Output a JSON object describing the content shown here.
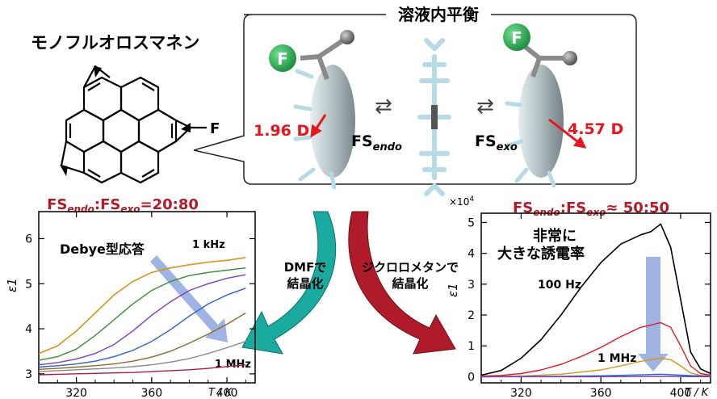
{
  "title_left": "モノフルオロスマネン",
  "molecule_substituent": "F",
  "equilibrium_title": "溶液内平衡",
  "equilibrium": {
    "endo": {
      "atom": "F",
      "dipole": "1.96 D",
      "label_main": "FS",
      "label_sub": "endo"
    },
    "exo": {
      "atom": "F",
      "dipole": "4.57 D",
      "label_main": "FS",
      "label_sub": "exo"
    },
    "arrow_symbol": "⇄"
  },
  "arrows": {
    "left": {
      "line1": "DMFで",
      "line2": "結晶化"
    },
    "right": {
      "line1": "ジクロロメタンで",
      "line2": "結晶化"
    }
  },
  "colors": {
    "red": "#e8161c",
    "dark_red": "#b01b2a",
    "teal": "#1aaa9f",
    "blue_arrow": "#8ea7dd",
    "green_ball": "#1fa64a"
  },
  "chart_data": [
    {
      "type": "line",
      "title_main1": "FS",
      "title_sub1": "endo",
      "title_sep": ":",
      "title_main2": "FS",
      "title_sub2": "exo",
      "title_ratio": "=20:80",
      "xlabel": "T / K",
      "ylabel": "ε1",
      "xlim": [
        300,
        415
      ],
      "ylim": [
        2.8,
        6.6
      ],
      "xticks": [
        "320",
        "360",
        "400"
      ],
      "yticks": [
        "3",
        "4",
        "5",
        "6"
      ],
      "annotations": {
        "label": "Debye型応答",
        "high": "1 kHz",
        "low": "1 MHz"
      },
      "series": [
        {
          "color": "#d4961a",
          "x": [
            300,
            310,
            320,
            330,
            340,
            350,
            360,
            370,
            380,
            390,
            400,
            410
          ],
          "y": [
            3.45,
            3.62,
            3.95,
            4.35,
            4.75,
            5.05,
            5.25,
            5.35,
            5.42,
            5.48,
            5.52,
            5.58
          ]
        },
        {
          "color": "#3a8a3a",
          "x": [
            300,
            310,
            320,
            330,
            340,
            350,
            360,
            370,
            380,
            390,
            400,
            410
          ],
          "y": [
            3.3,
            3.38,
            3.55,
            3.85,
            4.2,
            4.55,
            4.85,
            5.05,
            5.18,
            5.25,
            5.3,
            5.35
          ]
        },
        {
          "color": "#7a3fc4",
          "x": [
            300,
            310,
            320,
            330,
            340,
            350,
            360,
            370,
            380,
            390,
            400,
            410
          ],
          "y": [
            3.2,
            3.25,
            3.33,
            3.45,
            3.65,
            3.95,
            4.3,
            4.6,
            4.85,
            5.0,
            5.12,
            5.2
          ]
        },
        {
          "color": "#2f5fd0",
          "x": [
            300,
            310,
            320,
            330,
            340,
            350,
            360,
            370,
            380,
            390,
            400,
            410
          ],
          "y": [
            3.15,
            3.18,
            3.22,
            3.28,
            3.38,
            3.52,
            3.72,
            3.98,
            4.28,
            4.55,
            4.75,
            4.9
          ]
        },
        {
          "color": "#8a6a2a",
          "x": [
            300,
            310,
            320,
            330,
            340,
            350,
            360,
            370,
            380,
            390,
            400,
            410
          ],
          "y": [
            3.1,
            3.12,
            3.15,
            3.18,
            3.22,
            3.28,
            3.37,
            3.5,
            3.68,
            3.88,
            4.1,
            4.35
          ]
        },
        {
          "color": "#888888",
          "x": [
            300,
            310,
            320,
            330,
            340,
            350,
            360,
            370,
            380,
            390,
            400,
            410
          ],
          "y": [
            3.05,
            3.07,
            3.09,
            3.11,
            3.13,
            3.16,
            3.2,
            3.26,
            3.34,
            3.45,
            3.58,
            3.72
          ]
        },
        {
          "color": "#b01a4a",
          "x": [
            300,
            310,
            320,
            330,
            340,
            350,
            360,
            370,
            380,
            390,
            400,
            410
          ],
          "y": [
            2.98,
            2.99,
            3.0,
            3.01,
            3.02,
            3.03,
            3.05,
            3.07,
            3.09,
            3.12,
            3.16,
            3.2
          ]
        }
      ]
    },
    {
      "type": "line",
      "title_main1": "FS",
      "title_sub1": "endo",
      "title_sep": ":",
      "title_main2": "FS",
      "title_sub2": "exo",
      "title_ratio": "≈ 50:50",
      "xlabel": "T / K",
      "ylabel": "ε1",
      "yscale_label": "×10",
      "yscale_exp": "4",
      "xlim": [
        300,
        415
      ],
      "ylim": [
        -0.2,
        5.3
      ],
      "xticks": [
        "320",
        "360",
        "400"
      ],
      "yticks": [
        "0",
        "1",
        "2",
        "3",
        "4",
        "5"
      ],
      "annotations": {
        "label1": "非常に",
        "label2": "大きな誘電率",
        "high": "100 Hz",
        "low": "1 MHz"
      },
      "series": [
        {
          "color": "#000000",
          "x": [
            300,
            310,
            320,
            330,
            340,
            350,
            360,
            370,
            380,
            385,
            390,
            395,
            400,
            405,
            410,
            415
          ],
          "y": [
            0.05,
            0.2,
            0.6,
            1.2,
            2.0,
            2.9,
            3.7,
            4.3,
            4.6,
            4.7,
            4.95,
            4.2,
            2.5,
            0.8,
            0.25,
            0.1
          ]
        },
        {
          "color": "#e8161c",
          "x": [
            300,
            310,
            320,
            330,
            340,
            350,
            360,
            370,
            380,
            390,
            395,
            400,
            405,
            410,
            415
          ],
          "y": [
            0.02,
            0.04,
            0.1,
            0.22,
            0.4,
            0.65,
            0.95,
            1.3,
            1.6,
            1.75,
            1.6,
            1.0,
            0.35,
            0.1,
            0.05
          ]
        },
        {
          "color": "#d4961a",
          "x": [
            300,
            320,
            340,
            360,
            370,
            380,
            390,
            395,
            400,
            405,
            410,
            415
          ],
          "y": [
            0.0,
            0.02,
            0.08,
            0.22,
            0.35,
            0.5,
            0.6,
            0.55,
            0.35,
            0.12,
            0.04,
            0.02
          ]
        },
        {
          "color": "#2f5fd0",
          "x": [
            300,
            340,
            360,
            380,
            390,
            400,
            410,
            415
          ],
          "y": [
            0.0,
            0.01,
            0.03,
            0.06,
            0.08,
            0.05,
            0.02,
            0.01
          ]
        },
        {
          "color": "#7a3fc4",
          "x": [
            300,
            360,
            390,
            415
          ],
          "y": [
            0.0,
            0.0,
            0.01,
            0.0
          ]
        }
      ]
    }
  ]
}
